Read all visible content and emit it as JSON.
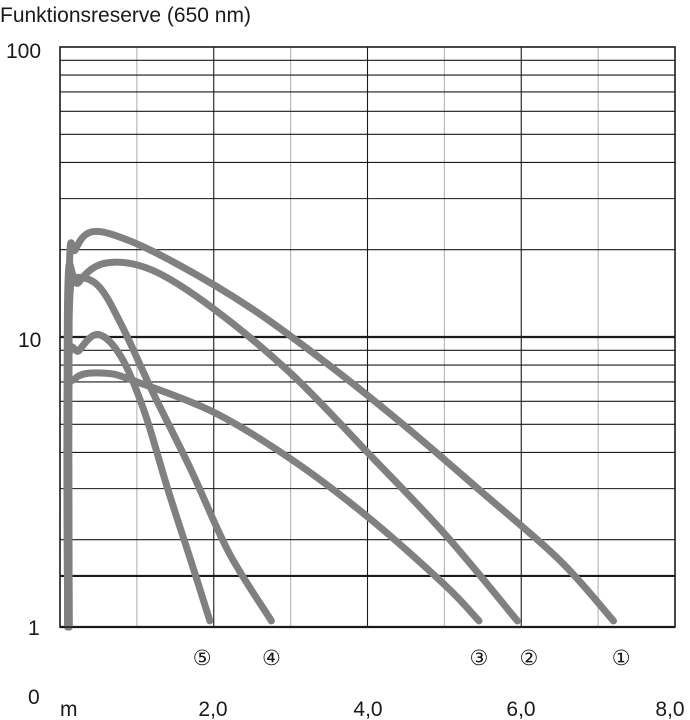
{
  "chart_data": {
    "type": "line",
    "title": "Funktionsreserve (650 nm)",
    "x_unit": "m",
    "x_ticks": [
      "2,0",
      "4,0",
      "6,0",
      "8,0"
    ],
    "x_tick_values": [
      2,
      4,
      6,
      8
    ],
    "xlim": [
      0,
      8
    ],
    "y_scale": "log",
    "y_ticks": [
      "1",
      "10",
      "100"
    ],
    "y_tick_values": [
      1,
      10,
      100
    ],
    "y_zero_label": "0",
    "ylim": [
      1,
      100
    ],
    "extra_reference_line_y": 1.5,
    "grid": true,
    "colors": {
      "curve": "#808080",
      "grid_major": "#1a1a1a",
      "grid_minor": "#b4b4b4"
    },
    "series": [
      {
        "name": "①",
        "x": [
          0.12,
          0.12,
          0.2,
          0.4,
          0.8,
          1.5,
          2.5,
          3.5,
          4.5,
          5.5,
          6.5,
          7.2
        ],
        "y": [
          1.0,
          16.0,
          20.0,
          23.0,
          22.0,
          18.0,
          12.5,
          8.0,
          4.9,
          2.9,
          1.7,
          1.05
        ]
      },
      {
        "name": "②",
        "x": [
          0.12,
          0.12,
          0.25,
          0.6,
          1.2,
          2.0,
          3.0,
          4.0,
          5.0,
          5.95
        ],
        "y": [
          1.0,
          12.0,
          15.5,
          18.0,
          17.0,
          12.5,
          7.5,
          4.0,
          2.1,
          1.05
        ]
      },
      {
        "name": "③",
        "x": [
          0.1,
          0.1,
          0.2,
          0.6,
          1.0,
          2.0,
          3.0,
          4.0,
          5.0,
          5.45
        ],
        "y": [
          1.0,
          5.5,
          7.2,
          7.5,
          7.0,
          5.5,
          3.8,
          2.4,
          1.4,
          1.05
        ]
      },
      {
        "name": "④",
        "x": [
          0.1,
          0.1,
          0.2,
          0.5,
          0.8,
          1.2,
          1.7,
          2.2,
          2.75
        ],
        "y": [
          1.0,
          14.0,
          16.0,
          15.0,
          11.0,
          6.5,
          3.5,
          1.8,
          1.05
        ]
      },
      {
        "name": "⑤",
        "x": [
          0.1,
          0.1,
          0.25,
          0.5,
          0.8,
          1.1,
          1.4,
          1.7,
          1.95
        ],
        "y": [
          1.0,
          7.5,
          9.0,
          10.2,
          8.5,
          5.5,
          3.0,
          1.7,
          1.05
        ]
      }
    ],
    "markers": [
      {
        "label": "⑤",
        "x": 1.85
      },
      {
        "label": "④",
        "x": 2.75
      },
      {
        "label": "③",
        "x": 5.45
      },
      {
        "label": "②",
        "x": 6.1
      },
      {
        "label": "①",
        "x": 7.3
      }
    ]
  }
}
